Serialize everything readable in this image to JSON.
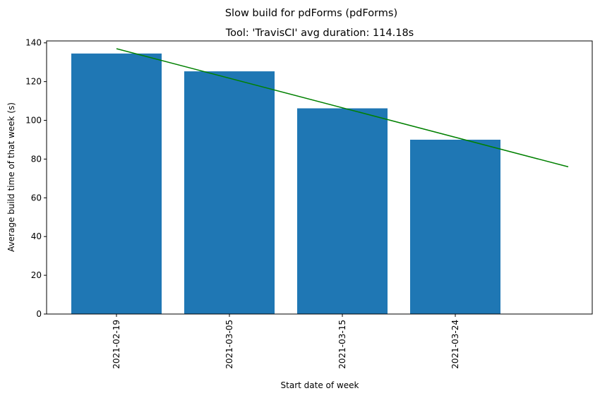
{
  "chart_data": {
    "type": "bar",
    "suptitle": "Slow build for pdForms (pdForms)",
    "title": "Tool: 'TravisCI' avg duration: 114.18s",
    "xlabel": "Start date of week",
    "ylabel": "Average build time of that week (s)",
    "categories": [
      "2021-02-19",
      "2021-03-05",
      "2021-03-15",
      "2021-03-24"
    ],
    "values": [
      134.5,
      125.3,
      106.2,
      90.0
    ],
    "bar_color": "#1f77b4",
    "ylim": [
      0,
      141
    ],
    "yticks": [
      0,
      20,
      40,
      60,
      80,
      100,
      120,
      140
    ],
    "trendline": {
      "color": "#008000",
      "start_value": 137.0,
      "end_value": 76.0
    },
    "grid": false,
    "legend": "none"
  }
}
